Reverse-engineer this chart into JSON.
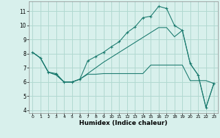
{
  "xlabel": "Humidex (Indice chaleur)",
  "background_color": "#d8f0ec",
  "grid_color": "#b0d8d0",
  "line_color": "#1a7a6e",
  "xlim": [
    -0.5,
    23.5
  ],
  "ylim": [
    3.8,
    11.7
  ],
  "yticks": [
    4,
    5,
    6,
    7,
    8,
    9,
    10,
    11
  ],
  "xticks": [
    0,
    1,
    2,
    3,
    4,
    5,
    6,
    7,
    8,
    9,
    10,
    11,
    12,
    13,
    14,
    15,
    16,
    17,
    18,
    19,
    20,
    21,
    22,
    23
  ],
  "series_marked": {
    "x": [
      0,
      1,
      2,
      3,
      4,
      5,
      6,
      7,
      8,
      9,
      10,
      11,
      12,
      13,
      14,
      15,
      16,
      17,
      18,
      19,
      20,
      21,
      22,
      23
    ],
    "y": [
      8.1,
      7.7,
      6.7,
      6.6,
      6.0,
      6.0,
      6.2,
      7.5,
      7.8,
      8.1,
      8.5,
      8.85,
      9.5,
      9.9,
      10.55,
      10.65,
      11.35,
      11.2,
      10.0,
      9.65,
      7.3,
      6.5,
      4.2,
      5.9
    ]
  },
  "series_flat": {
    "x": [
      0,
      1,
      2,
      3,
      4,
      5,
      6,
      7,
      8,
      9,
      10,
      11,
      12,
      13,
      14,
      15,
      16,
      17,
      18,
      19,
      20,
      21,
      22,
      23
    ],
    "y": [
      8.1,
      7.7,
      6.7,
      6.5,
      6.0,
      6.0,
      6.2,
      6.55,
      6.55,
      6.6,
      6.6,
      6.6,
      6.6,
      6.6,
      6.6,
      7.2,
      7.2,
      7.2,
      7.2,
      7.2,
      6.1,
      6.1,
      6.1,
      5.9
    ]
  },
  "series_diag": {
    "x": [
      0,
      1,
      2,
      3,
      4,
      5,
      6,
      7,
      8,
      9,
      10,
      11,
      12,
      13,
      14,
      15,
      16,
      17,
      18,
      19,
      20,
      21,
      22,
      23
    ],
    "y": [
      8.1,
      7.7,
      6.7,
      6.5,
      6.0,
      6.0,
      6.2,
      6.6,
      7.0,
      7.4,
      7.75,
      8.1,
      8.45,
      8.8,
      9.15,
      9.5,
      9.85,
      9.85,
      9.2,
      9.65,
      7.3,
      6.5,
      4.2,
      5.9
    ]
  }
}
